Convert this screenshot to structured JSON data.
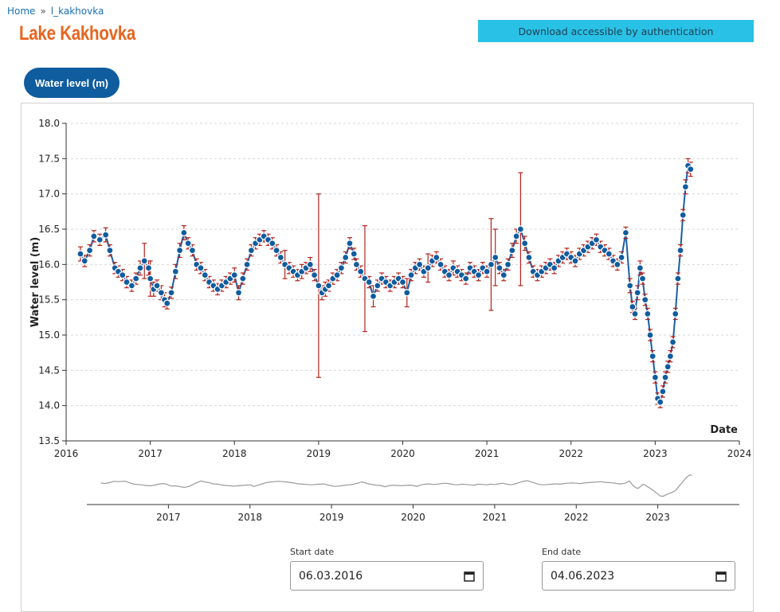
{
  "breadcrumb": {
    "home": "Home",
    "separator": "»",
    "current": "l_kakhovka"
  },
  "page": {
    "title": "Lake Kakhovka"
  },
  "download": {
    "label": "Download accessible by authentication"
  },
  "tab": {
    "label": "Water level (m)"
  },
  "date_range": {
    "start_label": "Start date",
    "start_value": "06.03.2016",
    "end_label": "End date",
    "end_value": "04.06.2023"
  },
  "colors": {
    "title": "#e8641e",
    "accent": "#0f5c9e",
    "button": "#29c1e6",
    "marker": "#0f5c9e",
    "error_bar": "#b5231c",
    "line": "#1a5fa3",
    "overview_line": "#9a9a9a"
  },
  "chart_data": {
    "type": "scatter",
    "title": "",
    "xlabel": "Date",
    "ylabel": "Water level (m)",
    "ylim": [
      13.5,
      18.0
    ],
    "yticks": [
      "13.5",
      "14.0",
      "14.5",
      "15.0",
      "15.5",
      "16.0",
      "16.5",
      "17.0",
      "17.5",
      "18.0"
    ],
    "xlim": [
      2016,
      2024
    ],
    "xticks": [
      "2016",
      "2017",
      "2018",
      "2019",
      "2020",
      "2021",
      "2022",
      "2023",
      "2024"
    ],
    "overview_xticks": [
      "2017",
      "2018",
      "2019",
      "2020",
      "2021",
      "2022",
      "2023"
    ],
    "grid": "horizontal dashed",
    "series": [
      {
        "x": [
          2016.17,
          2016.22,
          2016.28,
          2016.33,
          2016.4,
          2016.47,
          2016.52,
          2016.58,
          2016.62,
          2016.67,
          2016.72,
          2016.78,
          2016.83,
          2016.88,
          2016.93,
          2016.98,
          2017.0,
          2017.04,
          2017.08,
          2017.13,
          2017.17,
          2017.2,
          2017.25,
          2017.3,
          2017.35,
          2017.4,
          2017.45,
          2017.5,
          2017.55,
          2017.6,
          2017.65,
          2017.7,
          2017.75,
          2017.8,
          2017.85,
          2017.9,
          2017.95,
          2018.0,
          2018.05,
          2018.1,
          2018.15,
          2018.2,
          2018.25,
          2018.3,
          2018.35,
          2018.4,
          2018.45,
          2018.5,
          2018.55,
          2018.6,
          2018.65,
          2018.7,
          2018.75,
          2018.8,
          2018.85,
          2018.9,
          2018.95,
          2019.0,
          2019.04,
          2019.08,
          2019.12,
          2019.17,
          2019.22,
          2019.27,
          2019.32,
          2019.37,
          2019.42,
          2019.45,
          2019.5,
          2019.55,
          2019.6,
          2019.65,
          2019.7,
          2019.75,
          2019.8,
          2019.85,
          2019.9,
          2019.95,
          2020.0,
          2020.05,
          2020.1,
          2020.15,
          2020.2,
          2020.25,
          2020.3,
          2020.35,
          2020.4,
          2020.45,
          2020.5,
          2020.55,
          2020.6,
          2020.65,
          2020.7,
          2020.75,
          2020.8,
          2020.85,
          2020.9,
          2020.95,
          2021.0,
          2021.05,
          2021.1,
          2021.15,
          2021.2,
          2021.25,
          2021.3,
          2021.35,
          2021.4,
          2021.45,
          2021.5,
          2021.55,
          2021.6,
          2021.65,
          2021.7,
          2021.75,
          2021.8,
          2021.85,
          2021.9,
          2021.95,
          2022.0,
          2022.05,
          2022.1,
          2022.15,
          2022.2,
          2022.25,
          2022.3,
          2022.35,
          2022.4,
          2022.45,
          2022.5,
          2022.55,
          2022.6,
          2022.65,
          2022.7,
          2022.73,
          2022.76,
          2022.79,
          2022.82,
          2022.85,
          2022.88,
          2022.91,
          2022.94,
          2022.97,
          2023.0,
          2023.03,
          2023.06,
          2023.09,
          2023.12,
          2023.15,
          2023.18,
          2023.21,
          2023.24,
          2023.27,
          2023.3,
          2023.33,
          2023.36,
          2023.39,
          2023.42
        ],
        "y": [
          16.15,
          16.05,
          16.2,
          16.4,
          16.35,
          16.42,
          16.2,
          15.95,
          15.9,
          15.85,
          15.75,
          15.7,
          15.8,
          15.95,
          16.05,
          15.95,
          15.8,
          15.65,
          15.7,
          15.6,
          15.5,
          15.45,
          15.6,
          15.9,
          16.2,
          16.45,
          16.3,
          16.2,
          16.0,
          15.95,
          15.85,
          15.75,
          15.7,
          15.65,
          15.7,
          15.75,
          15.8,
          15.85,
          15.6,
          15.8,
          16.0,
          16.2,
          16.3,
          16.35,
          16.4,
          16.35,
          16.3,
          16.2,
          16.1,
          16.0,
          15.95,
          15.9,
          15.85,
          15.9,
          15.95,
          16.0,
          15.85,
          15.7,
          15.6,
          15.65,
          15.7,
          15.8,
          15.85,
          15.95,
          16.1,
          16.3,
          16.15,
          16.0,
          15.9,
          15.8,
          15.75,
          15.55,
          15.7,
          15.8,
          15.75,
          15.7,
          15.75,
          15.8,
          15.75,
          15.6,
          15.85,
          15.95,
          16.0,
          15.9,
          15.95,
          16.05,
          16.1,
          16.0,
          15.9,
          15.85,
          15.95,
          15.9,
          15.85,
          15.8,
          15.95,
          15.9,
          15.85,
          15.95,
          15.9,
          16.0,
          16.1,
          15.95,
          15.85,
          16.0,
          16.2,
          16.4,
          16.5,
          16.3,
          16.1,
          15.9,
          15.85,
          15.9,
          15.95,
          16.0,
          15.95,
          16.05,
          16.1,
          16.15,
          16.1,
          16.05,
          16.15,
          16.2,
          16.25,
          16.3,
          16.35,
          16.25,
          16.2,
          16.15,
          16.05,
          16.0,
          16.1,
          16.45,
          15.7,
          15.4,
          15.3,
          15.6,
          15.95,
          15.8,
          15.5,
          15.3,
          15.0,
          14.7,
          14.4,
          14.1,
          14.05,
          14.2,
          14.4,
          14.55,
          14.7,
          14.9,
          15.3,
          15.8,
          16.2,
          16.7,
          17.1,
          17.4,
          17.35
        ],
        "err": [
          0.1,
          0.08,
          0.08,
          0.08,
          0.08,
          0.1,
          0.08,
          0.08,
          0.08,
          0.08,
          0.08,
          0.08,
          0.08,
          0.1,
          0.25,
          0.1,
          0.25,
          0.1,
          0.08,
          0.1,
          0.1,
          0.08,
          0.08,
          0.1,
          0.1,
          0.1,
          0.08,
          0.08,
          0.08,
          0.08,
          0.08,
          0.08,
          0.08,
          0.08,
          0.08,
          0.08,
          0.08,
          0.1,
          0.1,
          0.08,
          0.08,
          0.08,
          0.08,
          0.08,
          0.08,
          0.08,
          0.08,
          0.08,
          0.08,
          0.2,
          0.08,
          0.08,
          0.08,
          0.1,
          0.08,
          0.1,
          0.08,
          1.3,
          0.1,
          0.1,
          0.08,
          0.08,
          0.08,
          0.08,
          0.08,
          0.08,
          0.08,
          0.08,
          0.08,
          0.75,
          0.08,
          0.15,
          0.08,
          0.08,
          0.08,
          0.08,
          0.08,
          0.08,
          0.08,
          0.2,
          0.08,
          0.08,
          0.08,
          0.08,
          0.2,
          0.08,
          0.08,
          0.08,
          0.08,
          0.08,
          0.1,
          0.08,
          0.08,
          0.08,
          0.08,
          0.08,
          0.08,
          0.08,
          0.08,
          0.65,
          0.4,
          0.08,
          0.08,
          0.08,
          0.1,
          0.1,
          0.8,
          0.1,
          0.08,
          0.08,
          0.08,
          0.08,
          0.08,
          0.08,
          0.08,
          0.08,
          0.08,
          0.08,
          0.08,
          0.08,
          0.08,
          0.08,
          0.08,
          0.08,
          0.08,
          0.08,
          0.08,
          0.08,
          0.08,
          0.08,
          0.08,
          0.08,
          0.1,
          0.08,
          0.08,
          0.1,
          0.1,
          0.08,
          0.08,
          0.08,
          0.08,
          0.08,
          0.08,
          0.08,
          0.08,
          0.08,
          0.08,
          0.08,
          0.08,
          0.08,
          0.08,
          0.08,
          0.08,
          0.08,
          0.1,
          0.1,
          0.1
        ]
      }
    ]
  }
}
